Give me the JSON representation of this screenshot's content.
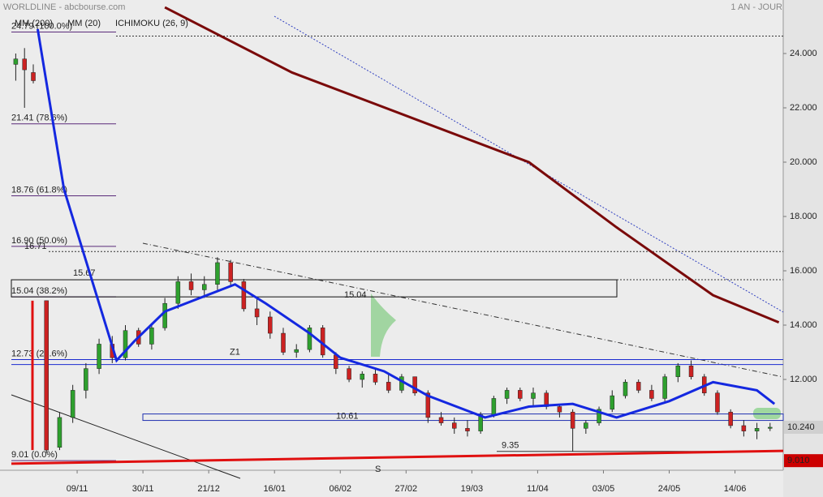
{
  "chart_data": {
    "type": "candlestick",
    "title": "WORLDLINE - abcbourse.com",
    "subtitle": "1 AN - JOUR",
    "xlim": [
      0,
      176
    ],
    "ylim": [
      8.657,
      25.97
    ],
    "xticks": [
      {
        "value": 15,
        "label": "09/11"
      },
      {
        "value": 30,
        "label": "30/11"
      },
      {
        "value": 45,
        "label": "21/12"
      },
      {
        "value": 60,
        "label": "16/01"
      },
      {
        "value": 75,
        "label": "06/02"
      },
      {
        "value": 90,
        "label": "27/02"
      },
      {
        "value": 105,
        "label": "19/03"
      },
      {
        "value": 120,
        "label": "11/04"
      },
      {
        "value": 135,
        "label": "03/05"
      },
      {
        "value": 150,
        "label": "24/05"
      },
      {
        "value": 165,
        "label": "14/06"
      }
    ],
    "yticks": [
      {
        "value": 12,
        "label": "12.000"
      },
      {
        "value": 14,
        "label": "14.000"
      },
      {
        "value": 16,
        "label": "16.000"
      },
      {
        "value": 18,
        "label": "18.000"
      },
      {
        "value": 20,
        "label": "20.000"
      },
      {
        "value": 22,
        "label": "22.000"
      },
      {
        "value": 24,
        "label": "24.000"
      }
    ],
    "up_color": "#2ea02e",
    "down_color": "#cc2222",
    "candles": {
      "x": [
        1,
        3,
        5,
        8,
        11,
        14,
        17,
        20,
        23,
        26,
        29,
        32,
        35,
        38,
        41,
        44,
        47,
        50,
        53,
        56,
        59,
        62,
        65,
        68,
        71,
        74,
        77,
        80,
        83,
        86,
        89,
        92,
        95,
        98,
        101,
        104,
        107,
        110,
        113,
        116,
        119,
        122,
        125,
        128,
        131,
        134,
        137,
        140,
        143,
        146,
        149,
        152,
        155,
        158,
        161,
        164,
        167,
        170,
        173
      ],
      "open": [
        23.6,
        23.8,
        23.3,
        14.9,
        9.5,
        10.6,
        11.6,
        12.4,
        13.3,
        12.8,
        13.8,
        13.3,
        13.9,
        14.8,
        15.6,
        15.3,
        15.5,
        16.3,
        15.6,
        14.6,
        14.3,
        13.7,
        13.0,
        13.1,
        13.9,
        12.9,
        12.4,
        12.0,
        12.2,
        11.9,
        11.6,
        12.1,
        11.5,
        10.6,
        10.4,
        10.2,
        10.1,
        10.7,
        11.3,
        11.6,
        11.3,
        11.5,
        11.0,
        10.8,
        10.2,
        10.4,
        10.9,
        11.4,
        11.9,
        11.6,
        11.3,
        12.1,
        12.5,
        12.1,
        11.5,
        10.8,
        10.3,
        10.1,
        10.2
      ],
      "high": [
        24.0,
        24.2,
        23.6,
        14.9,
        10.8,
        11.8,
        12.6,
        13.5,
        13.6,
        14.0,
        13.9,
        14.0,
        15.0,
        15.8,
        15.9,
        15.8,
        16.5,
        16.4,
        15.7,
        15.0,
        14.5,
        13.9,
        13.3,
        14.0,
        14.0,
        13.0,
        12.5,
        12.3,
        12.4,
        12.2,
        12.2,
        12.1,
        11.6,
        10.8,
        10.6,
        10.5,
        10.8,
        11.4,
        11.7,
        11.7,
        11.7,
        11.6,
        11.1,
        10.9,
        10.5,
        11.0,
        11.6,
        12.0,
        12.0,
        11.8,
        12.2,
        12.6,
        12.7,
        12.2,
        11.6,
        10.9,
        10.5,
        10.4,
        10.4
      ],
      "low": [
        23.0,
        22.0,
        22.9,
        9.3,
        9.4,
        10.4,
        11.3,
        12.2,
        12.6,
        12.7,
        13.2,
        13.1,
        13.8,
        14.6,
        15.1,
        15.0,
        15.3,
        15.4,
        14.5,
        14.0,
        13.5,
        12.9,
        12.8,
        13.0,
        12.8,
        12.2,
        11.9,
        11.7,
        11.8,
        11.5,
        11.5,
        11.4,
        10.4,
        10.3,
        10.0,
        9.9,
        10.0,
        10.6,
        11.1,
        11.2,
        11.0,
        10.9,
        10.6,
        9.35,
        10.0,
        10.3,
        10.8,
        11.3,
        11.5,
        11.2,
        11.2,
        11.9,
        12.0,
        11.4,
        10.7,
        10.2,
        9.9,
        9.8,
        10.1
      ],
      "close": [
        23.8,
        23.4,
        23.0,
        9.4,
        10.6,
        11.6,
        12.4,
        13.3,
        12.8,
        13.8,
        13.3,
        13.9,
        14.8,
        15.6,
        15.3,
        15.5,
        16.3,
        15.6,
        14.6,
        14.3,
        13.7,
        13.0,
        13.1,
        13.9,
        12.9,
        12.4,
        12.0,
        12.2,
        11.9,
        11.6,
        12.1,
        11.5,
        10.6,
        10.4,
        10.2,
        10.1,
        10.7,
        11.3,
        11.6,
        11.3,
        11.5,
        11.0,
        10.8,
        10.2,
        10.4,
        10.9,
        11.4,
        11.9,
        11.6,
        11.3,
        12.1,
        12.5,
        12.1,
        11.5,
        10.8,
        10.3,
        10.1,
        10.2,
        10.24
      ]
    },
    "series": [
      {
        "name": "MM (200)",
        "color": "#7a0a0a",
        "x": [
          35,
          64,
          118,
          138,
          160,
          175
        ],
        "values": [
          25.7,
          23.3,
          20.0,
          17.6,
          15.1,
          14.1
        ]
      },
      {
        "name": "MM (20)",
        "color": "#1428e0",
        "x": [
          6,
          12,
          24,
          28,
          35,
          51,
          58,
          68,
          75,
          85,
          95,
          108,
          118,
          128,
          138,
          150,
          160,
          170,
          174
        ],
        "values": [
          24.9,
          19.0,
          12.7,
          13.4,
          14.5,
          15.5,
          14.8,
          13.7,
          12.8,
          12.3,
          11.4,
          10.6,
          11.0,
          11.1,
          10.6,
          11.2,
          11.9,
          11.6,
          11.1
        ]
      },
      {
        "name": "ICHIMOKU (26, 9)",
        "color": "#1a5fd0"
      }
    ],
    "fib_levels": [
      {
        "value": 24.79,
        "label": "24.79 (100.0%)"
      },
      {
        "value": 21.41,
        "label": "21.41 (78.6%)"
      },
      {
        "value": 18.76,
        "label": "18.76 (61.8%)"
      },
      {
        "value": 16.9,
        "label": "16.90 (50.0%)"
      },
      {
        "value": 15.04,
        "label": "15.04 (38.2%)"
      },
      {
        "value": 12.73,
        "label": "12.73 (23.6%)"
      },
      {
        "value": 9.01,
        "label": "9.01 (0.0%)"
      }
    ],
    "levels": [
      {
        "value": 16.71,
        "label": "16.71"
      },
      {
        "value": 15.67,
        "label": "15.67"
      },
      {
        "value": 15.04,
        "label": "15.04"
      },
      {
        "value": 10.61,
        "label": "10.61"
      },
      {
        "value": 9.35,
        "label": "9.35"
      }
    ],
    "zone": {
      "label": "Z1",
      "values": [
        12.73,
        12.55
      ]
    },
    "support": {
      "label": "S",
      "x": [
        0,
        176
      ],
      "values": [
        8.9,
        9.37
      ]
    },
    "price_tags": [
      {
        "value": 10.24,
        "label": "10.240",
        "color": "#d0d0d0"
      },
      {
        "value": 9.01,
        "label": "9.010",
        "color": "#cc0000"
      }
    ]
  }
}
